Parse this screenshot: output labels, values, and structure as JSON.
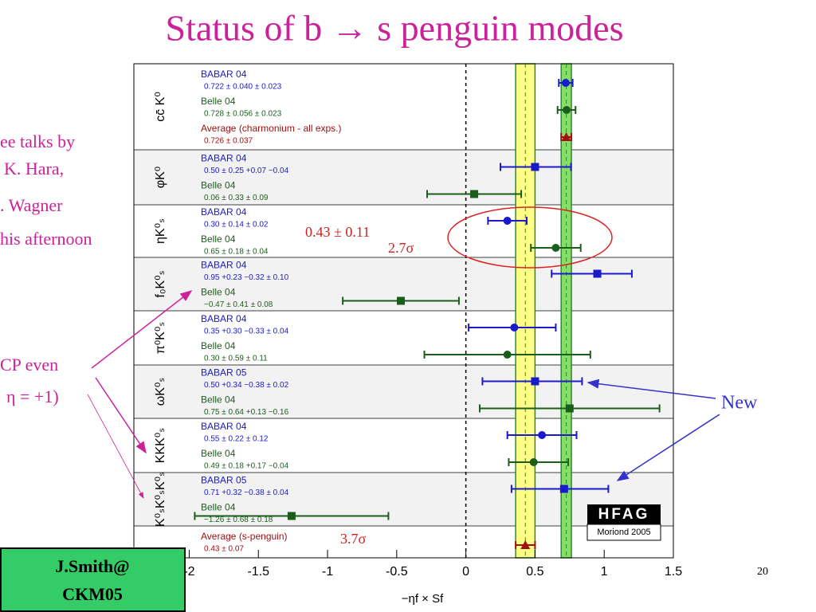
{
  "title": "Status of b → s penguin modes",
  "side_notes": [
    "ee talks by",
    "K. Hara,",
    ". Wagner",
    "his afternoon"
  ],
  "cp_note": [
    "CP even",
    "η = +1)"
  ],
  "new_note": "New",
  "page_number": "20",
  "author": [
    "J.Smith@",
    "CKM05"
  ],
  "logo": [
    "HFAG",
    "Moriond 2005"
  ],
  "chart_data": {
    "type": "errorbar",
    "xlabel": "−ηf × Sf",
    "xlim": [
      -2.4,
      1.5
    ],
    "xticks": [
      -2,
      -1.5,
      -1,
      -0.5,
      0,
      0.5,
      1,
      1.5
    ],
    "rows": [
      {
        "label": "cc̄ K⁰",
        "measurements": [
          {
            "name": "BABAR 04",
            "label": "0.722 ± 0.040 ± 0.023",
            "value": 0.722,
            "err_minus": 0.05,
            "err_plus": 0.05,
            "color": "#1a1acc",
            "marker": "circle"
          },
          {
            "name": "Belle 04",
            "label": "0.728 ± 0.056 ± 0.023",
            "value": 0.728,
            "err_minus": 0.065,
            "err_plus": 0.065,
            "color": "#1a5e1a",
            "marker": "circle"
          },
          {
            "name": "Average (charmonium - all exps.)",
            "label": "0.726 ± 0.037",
            "value": 0.726,
            "err_minus": 0.037,
            "err_plus": 0.037,
            "color": "#a01010",
            "marker": "triangle"
          }
        ]
      },
      {
        "label": "φK⁰",
        "measurements": [
          {
            "name": "BABAR 04",
            "label": "0.50 ± 0.25 +0.07 −0.04",
            "value": 0.5,
            "err_minus": 0.25,
            "err_plus": 0.26,
            "color": "#1a1acc",
            "marker": "square"
          },
          {
            "name": "Belle 04",
            "label": "0.06 ± 0.33 ± 0.09",
            "value": 0.06,
            "err_minus": 0.34,
            "err_plus": 0.34,
            "color": "#1a5e1a",
            "marker": "square"
          }
        ]
      },
      {
        "label": "ηK⁰ₛ",
        "measurements": [
          {
            "name": "BABAR 04",
            "label": "0.30 ± 0.14 ± 0.02",
            "value": 0.3,
            "err_minus": 0.14,
            "err_plus": 0.14,
            "color": "#1a1acc",
            "marker": "circle"
          },
          {
            "name": "Belle 04",
            "label": "0.65 ± 0.18 ± 0.04",
            "value": 0.65,
            "err_minus": 0.18,
            "err_plus": 0.18,
            "color": "#1a5e1a",
            "marker": "circle"
          }
        ]
      },
      {
        "label": "f₀K⁰ₛ",
        "measurements": [
          {
            "name": "BABAR 04",
            "label": "0.95 +0.23 −0.32 ± 0.10",
            "value": 0.95,
            "err_minus": 0.33,
            "err_plus": 0.25,
            "color": "#1a1acc",
            "marker": "square"
          },
          {
            "name": "Belle 04",
            "label": "−0.47 ± 0.41 ± 0.08",
            "value": -0.47,
            "err_minus": 0.42,
            "err_plus": 0.42,
            "color": "#1a5e1a",
            "marker": "square"
          }
        ]
      },
      {
        "label": "π⁰K⁰ₛ",
        "measurements": [
          {
            "name": "BABAR 04",
            "label": "0.35 +0.30 −0.33 ± 0.04",
            "value": 0.35,
            "err_minus": 0.33,
            "err_plus": 0.3,
            "color": "#1a1acc",
            "marker": "circle"
          },
          {
            "name": "Belle 04",
            "label": "0.30 ± 0.59 ± 0.11",
            "value": 0.3,
            "err_minus": 0.6,
            "err_plus": 0.6,
            "color": "#1a5e1a",
            "marker": "circle"
          }
        ]
      },
      {
        "label": "ωK⁰ₛ",
        "measurements": [
          {
            "name": "BABAR 05",
            "label": "0.50 +0.34 −0.38 ± 0.02",
            "value": 0.5,
            "err_minus": 0.38,
            "err_plus": 0.34,
            "color": "#1a1acc",
            "marker": "square"
          },
          {
            "name": "Belle 04",
            "label": "0.75 ± 0.64 +0.13 −0.16",
            "value": 0.75,
            "err_minus": 0.65,
            "err_plus": 0.65,
            "color": "#1a5e1a",
            "marker": "square"
          }
        ]
      },
      {
        "label": "KKK⁰ₛ",
        "measurements": [
          {
            "name": "BABAR 04",
            "label": "0.55 ± 0.22 ± 0.12",
            "value": 0.55,
            "err_minus": 0.25,
            "err_plus": 0.25,
            "color": "#1a1acc",
            "marker": "circle"
          },
          {
            "name": "Belle 04",
            "label": "0.49 ± 0.18 +0.17 −0.04",
            "value": 0.49,
            "err_minus": 0.18,
            "err_plus": 0.25,
            "color": "#1a5e1a",
            "marker": "circle"
          }
        ]
      },
      {
        "label": "K⁰ₛK⁰ₛK⁰ₛ",
        "measurements": [
          {
            "name": "BABAR 05",
            "label": "0.71 +0.32 −0.38 ± 0.04",
            "value": 0.71,
            "err_minus": 0.38,
            "err_plus": 0.32,
            "color": "#1a1acc",
            "marker": "square"
          },
          {
            "name": "Belle 04",
            "label": "−1.26 ± 0.68 ± 0.18",
            "value": -1.26,
            "err_minus": 0.7,
            "err_plus": 0.7,
            "color": "#1a5e1a",
            "marker": "square"
          }
        ]
      },
      {
        "label": null,
        "measurements": [
          {
            "name": "Average (s-penguin)",
            "label": "0.43 ± 0.07",
            "value": 0.43,
            "err_minus": 0.07,
            "err_plus": 0.07,
            "color": "#a01010",
            "marker": "triangle"
          }
        ]
      }
    ],
    "annotations": {
      "eta_average": "0.43 ± 0.11",
      "eta_significance": "2.7σ",
      "average_significance": "3.7σ"
    }
  }
}
